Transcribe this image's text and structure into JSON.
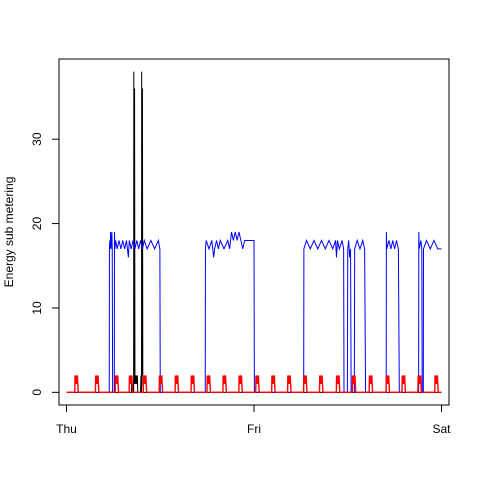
{
  "chart_data": {
    "type": "line",
    "title": "",
    "xlabel": "",
    "ylabel": "Energy sub metering",
    "x_unit": "days",
    "xlim": [
      -0.04,
      2.04
    ],
    "ylim": [
      -1.5,
      39.5
    ],
    "x_ticks": [
      {
        "value": 0,
        "label": "Thu"
      },
      {
        "value": 1,
        "label": "Fri"
      },
      {
        "value": 2,
        "label": "Sat"
      }
    ],
    "y_ticks": [
      0,
      10,
      20,
      30
    ],
    "grid": false,
    "legend": "none",
    "series": [
      {
        "color": "#000000",
        "points": [
          [
            0,
            0
          ],
          [
            0.346,
            0
          ],
          [
            0.347,
            1
          ],
          [
            0.349,
            0
          ],
          [
            0.355,
            0
          ],
          [
            0.356,
            1
          ],
          [
            0.358,
            0
          ],
          [
            0.358,
            0
          ],
          [
            0.359,
            38
          ],
          [
            0.361,
            1
          ],
          [
            0.363,
            36
          ],
          [
            0.365,
            1
          ],
          [
            0.367,
            2
          ],
          [
            0.37,
            1
          ],
          [
            0.372,
            2
          ],
          [
            0.375,
            1
          ],
          [
            0.378,
            2
          ],
          [
            0.38,
            0
          ],
          [
            0.395,
            0
          ],
          [
            0.397,
            2
          ],
          [
            0.399,
            1
          ],
          [
            0.4,
            0
          ],
          [
            0.401,
            38
          ],
          [
            0.403,
            2
          ],
          [
            0.405,
            36
          ],
          [
            0.407,
            1
          ],
          [
            0.409,
            0
          ],
          [
            2,
            0
          ]
        ]
      },
      {
        "color": "#0000ff",
        "points": [
          [
            0,
            0
          ],
          [
            0.228,
            0
          ],
          [
            0.229,
            17
          ],
          [
            0.231,
            18
          ],
          [
            0.233,
            17
          ],
          [
            0.235,
            19
          ],
          [
            0.237,
            17
          ],
          [
            0.24,
            18
          ],
          [
            0.242,
            19
          ],
          [
            0.244,
            17
          ],
          [
            0.246,
            0
          ],
          [
            0.255,
            0
          ],
          [
            0.256,
            19
          ],
          [
            0.258,
            17
          ],
          [
            0.262,
            18
          ],
          [
            0.27,
            17
          ],
          [
            0.28,
            18
          ],
          [
            0.29,
            17
          ],
          [
            0.3,
            18
          ],
          [
            0.31,
            17
          ],
          [
            0.32,
            18
          ],
          [
            0.325,
            17
          ],
          [
            0.33,
            16
          ],
          [
            0.335,
            18
          ],
          [
            0.345,
            17
          ],
          [
            0.355,
            18
          ],
          [
            0.365,
            17
          ],
          [
            0.375,
            18
          ],
          [
            0.385,
            17
          ],
          [
            0.395,
            18
          ],
          [
            0.405,
            17
          ],
          [
            0.415,
            18
          ],
          [
            0.43,
            17
          ],
          [
            0.45,
            18
          ],
          [
            0.47,
            17
          ],
          [
            0.49,
            18
          ],
          [
            0.498,
            17
          ],
          [
            0.5,
            0
          ],
          [
            0.74,
            0
          ],
          [
            0.741,
            17
          ],
          [
            0.745,
            18
          ],
          [
            0.76,
            17
          ],
          [
            0.775,
            18
          ],
          [
            0.785,
            16
          ],
          [
            0.79,
            17
          ],
          [
            0.8,
            18
          ],
          [
            0.81,
            17
          ],
          [
            0.82,
            18
          ],
          [
            0.84,
            17
          ],
          [
            0.86,
            18
          ],
          [
            0.87,
            17
          ],
          [
            0.88,
            19
          ],
          [
            0.89,
            18
          ],
          [
            0.9,
            19
          ],
          [
            0.91,
            18
          ],
          [
            0.92,
            19
          ],
          [
            0.93,
            18
          ],
          [
            0.94,
            17
          ],
          [
            0.95,
            18
          ],
          [
            0.958,
            18
          ],
          [
            1.0,
            18
          ],
          [
            1.002,
            0
          ],
          [
            1.265,
            0
          ],
          [
            1.266,
            17
          ],
          [
            1.28,
            18
          ],
          [
            1.3,
            17
          ],
          [
            1.32,
            18
          ],
          [
            1.34,
            17
          ],
          [
            1.36,
            18
          ],
          [
            1.38,
            17
          ],
          [
            1.4,
            18
          ],
          [
            1.42,
            17
          ],
          [
            1.435,
            18
          ],
          [
            1.44,
            16
          ],
          [
            1.445,
            18
          ],
          [
            1.455,
            17
          ],
          [
            1.47,
            18
          ],
          [
            1.478,
            17
          ],
          [
            1.48,
            0
          ],
          [
            1.498,
            0
          ],
          [
            1.5,
            17
          ],
          [
            1.505,
            18
          ],
          [
            1.51,
            16
          ],
          [
            1.515,
            17
          ],
          [
            1.518,
            0
          ],
          [
            1.535,
            0
          ],
          [
            1.537,
            17
          ],
          [
            1.55,
            18
          ],
          [
            1.565,
            17
          ],
          [
            1.58,
            18
          ],
          [
            1.59,
            17
          ],
          [
            1.595,
            0
          ],
          [
            1.705,
            0
          ],
          [
            1.706,
            19
          ],
          [
            1.708,
            17
          ],
          [
            1.72,
            18
          ],
          [
            1.73,
            17
          ],
          [
            1.74,
            18
          ],
          [
            1.75,
            17
          ],
          [
            1.76,
            18
          ],
          [
            1.77,
            17
          ],
          [
            1.775,
            0
          ],
          [
            1.878,
            0
          ],
          [
            1.879,
            19
          ],
          [
            1.881,
            17
          ],
          [
            1.89,
            18
          ],
          [
            1.895,
            17
          ],
          [
            1.897,
            0
          ],
          [
            1.903,
            0
          ],
          [
            1.904,
            17
          ],
          [
            1.92,
            18
          ],
          [
            1.94,
            17
          ],
          [
            1.96,
            18
          ],
          [
            1.98,
            17
          ],
          [
            2.0,
            17
          ]
        ]
      },
      {
        "color": "#ff0000",
        "points": [
          [
            0,
            0
          ],
          [
            2,
            0
          ]
        ],
        "bursts_at": [
          0.04,
          0.15,
          0.255,
          0.33,
          0.405,
          0.49,
          0.575,
          0.66,
          0.745,
          0.83,
          0.915,
          1.005,
          1.09,
          1.175,
          1.26,
          1.345,
          1.435,
          1.52,
          1.61,
          1.7,
          1.785,
          1.87,
          1.96
        ],
        "burst_height": 2,
        "burst_width": 0.028
      }
    ]
  }
}
